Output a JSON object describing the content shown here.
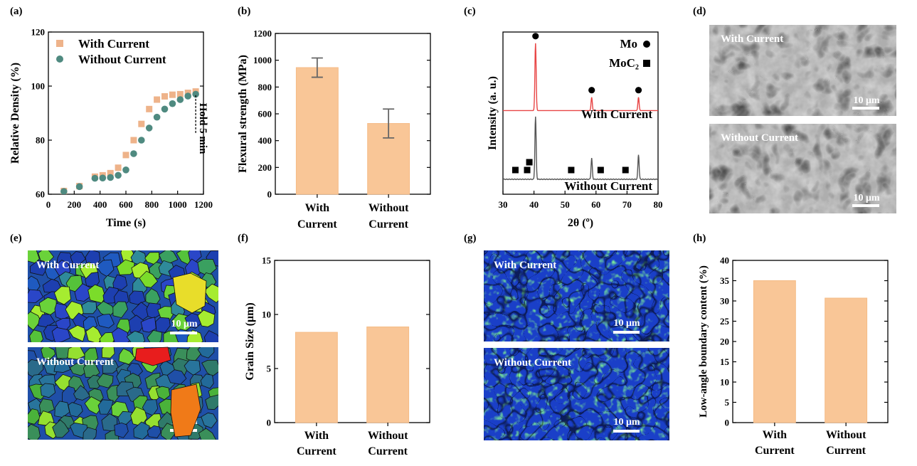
{
  "colors": {
    "bar": "#f9c697",
    "bar_outline": "#f5bb86",
    "with_marker": "#eeb38a",
    "without_marker": "#4f8a80",
    "xrd_with": "#e84545",
    "xrd_without": "#555555"
  },
  "panels": {
    "a": "(a)",
    "b": "(b)",
    "c": "(c)",
    "d": "(d)",
    "e": "(e)",
    "f": "(f)",
    "g": "(g)",
    "h": "(h)"
  },
  "images": {
    "d_top": "With Current",
    "d_bottom": "Without Current",
    "e_top": "With Current",
    "e_bottom": "Without Current",
    "g_top": "With Current",
    "g_bottom": "Without Current",
    "scale_bar": "10 μm"
  },
  "chart_data": [
    {
      "id": "a",
      "type": "scatter",
      "xlabel": "Time (s)",
      "ylabel": "Relative Density (%)",
      "xlim": [
        0,
        1200
      ],
      "ylim": [
        60,
        120
      ],
      "xticks": [
        "0",
        "200",
        "400",
        "600",
        "800",
        "1000",
        "1200"
      ],
      "yticks": [
        "60",
        "80",
        "100",
        "120"
      ],
      "annotation": "Hold 5 min",
      "legend_position": "top-left",
      "series": [
        {
          "name": "With Current",
          "marker": "square",
          "x": [
            120,
            240,
            360,
            420,
            480,
            540,
            600,
            660,
            720,
            780,
            840,
            900,
            960,
            1020,
            1080,
            1140
          ],
          "y": [
            61.2,
            63.0,
            66.5,
            67.0,
            67.8,
            69.8,
            74.5,
            80.0,
            86.0,
            91.5,
            95.0,
            96.2,
            96.8,
            97.0,
            97.5,
            98.0
          ]
        },
        {
          "name": "Without Current",
          "marker": "circle",
          "x": [
            120,
            240,
            360,
            420,
            480,
            540,
            600,
            660,
            720,
            780,
            840,
            900,
            960,
            1020,
            1080,
            1140
          ],
          "y": [
            61.0,
            62.8,
            65.9,
            66.0,
            66.2,
            67.0,
            69.0,
            75.0,
            80.0,
            84.5,
            88.5,
            91.5,
            93.5,
            95.0,
            96.3,
            97.0
          ]
        }
      ]
    },
    {
      "id": "b",
      "type": "bar",
      "ylabel": "Flexural strength (MPa)",
      "categories": [
        [
          "With",
          "Current"
        ],
        [
          "Without",
          "Current"
        ]
      ],
      "values": [
        945,
        528
      ],
      "errors": [
        72,
        108
      ],
      "ylim": [
        0,
        1200
      ],
      "yticks": [
        "0",
        "200",
        "400",
        "600",
        "800",
        "1000",
        "1200"
      ]
    },
    {
      "id": "c",
      "type": "line",
      "xlabel": "2θ (º)",
      "ylabel": "Intensity (a. u.)",
      "xlim": [
        30,
        80
      ],
      "xticks": [
        "30",
        "40",
        "50",
        "60",
        "70",
        "80"
      ],
      "legend": [
        {
          "label": "Mo",
          "marker": "circle"
        },
        {
          "label": "MoC₂",
          "marker": "square"
        }
      ],
      "series": [
        {
          "name": "With Current",
          "baseline": 0.42,
          "peaks": [
            [
              40.5,
              4.3
            ],
            [
              58.6,
              0.85
            ],
            [
              73.7,
              0.85
            ]
          ],
          "markers": {
            "circle": [
              40.5,
              58.6,
              73.7
            ],
            "square": []
          }
        },
        {
          "name": "Without Current",
          "baseline": 0,
          "peaks": [
            [
              40.5,
              4.0
            ],
            [
              58.6,
              1.35
            ],
            [
              73.7,
              1.58
            ]
          ],
          "markers": {
            "circle": [],
            "square": [
              34.0,
              37.8,
              38.5,
              52.0,
              61.5,
              69.5
            ]
          }
        }
      ]
    },
    {
      "id": "f",
      "type": "bar",
      "ylabel": "Grain Size (μm)",
      "categories": [
        [
          "With",
          "Current"
        ],
        [
          "Without",
          "Current"
        ]
      ],
      "values": [
        8.35,
        8.85
      ],
      "ylim": [
        0,
        15
      ],
      "yticks": [
        "0",
        "5",
        "10",
        "15"
      ]
    },
    {
      "id": "h",
      "type": "bar",
      "ylabel": "Low-angle boundary content (%)",
      "categories": [
        [
          "With",
          "Current"
        ],
        [
          "Without",
          "Current"
        ]
      ],
      "values": [
        35.0,
        30.7
      ],
      "ylim": [
        0,
        40
      ],
      "yticks": [
        "0",
        "5",
        "10",
        "15",
        "20",
        "25",
        "30",
        "35",
        "40"
      ]
    }
  ]
}
